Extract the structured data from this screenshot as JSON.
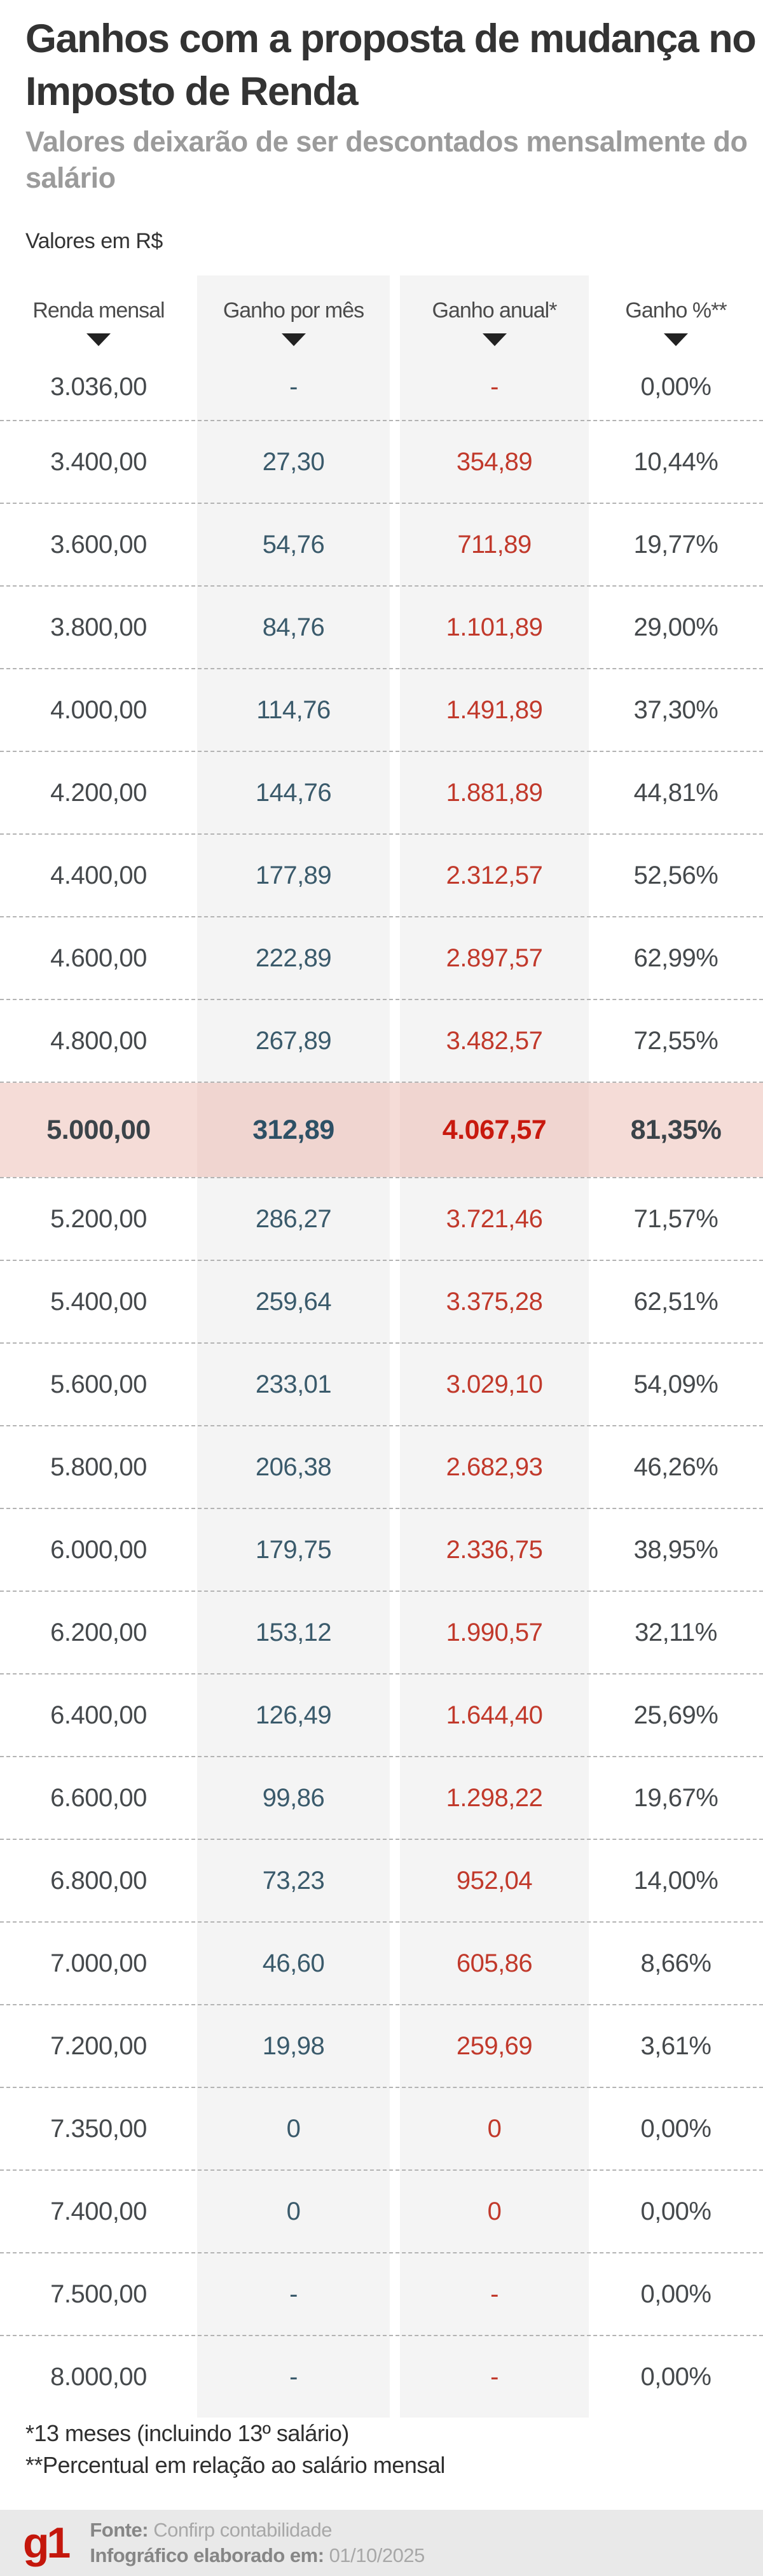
{
  "header": {
    "title": "Ganhos com a proposta de mudança no Imposto de Renda",
    "subtitle": "Valores deixarão de ser descontados mensalmente do salário",
    "unit_note": "Valores em R$"
  },
  "chart_data": {
    "type": "table",
    "title": "Ganhos com a proposta de mudança no Imposto de Renda",
    "columns": [
      "Renda mensal",
      "Ganho por mês",
      "Ganho anual*",
      "Ganho %**"
    ],
    "sort_icon": "triangle-down",
    "highlighted_row_index": 9,
    "rows": [
      {
        "renda": "3.036,00",
        "ganho_mes": "-",
        "ganho_anual": "-",
        "ganho_pct": "0,00%",
        "highlight": false
      },
      {
        "renda": "3.400,00",
        "ganho_mes": "27,30",
        "ganho_anual": "354,89",
        "ganho_pct": "10,44%",
        "highlight": false
      },
      {
        "renda": "3.600,00",
        "ganho_mes": "54,76",
        "ganho_anual": "711,89",
        "ganho_pct": "19,77%",
        "highlight": false
      },
      {
        "renda": "3.800,00",
        "ganho_mes": "84,76",
        "ganho_anual": "1.101,89",
        "ganho_pct": "29,00%",
        "highlight": false
      },
      {
        "renda": "4.000,00",
        "ganho_mes": "114,76",
        "ganho_anual": "1.491,89",
        "ganho_pct": "37,30%",
        "highlight": false
      },
      {
        "renda": "4.200,00",
        "ganho_mes": "144,76",
        "ganho_anual": "1.881,89",
        "ganho_pct": "44,81%",
        "highlight": false
      },
      {
        "renda": "4.400,00",
        "ganho_mes": "177,89",
        "ganho_anual": "2.312,57",
        "ganho_pct": "52,56%",
        "highlight": false
      },
      {
        "renda": "4.600,00",
        "ganho_mes": "222,89",
        "ganho_anual": "2.897,57",
        "ganho_pct": "62,99%",
        "highlight": false
      },
      {
        "renda": "4.800,00",
        "ganho_mes": "267,89",
        "ganho_anual": "3.482,57",
        "ganho_pct": "72,55%",
        "highlight": false
      },
      {
        "renda": "5.000,00",
        "ganho_mes": "312,89",
        "ganho_anual": "4.067,57",
        "ganho_pct": "81,35%",
        "highlight": true
      },
      {
        "renda": "5.200,00",
        "ganho_mes": "286,27",
        "ganho_anual": "3.721,46",
        "ganho_pct": "71,57%",
        "highlight": false
      },
      {
        "renda": "5.400,00",
        "ganho_mes": "259,64",
        "ganho_anual": "3.375,28",
        "ganho_pct": "62,51%",
        "highlight": false
      },
      {
        "renda": "5.600,00",
        "ganho_mes": "233,01",
        "ganho_anual": "3.029,10",
        "ganho_pct": "54,09%",
        "highlight": false
      },
      {
        "renda": "5.800,00",
        "ganho_mes": "206,38",
        "ganho_anual": "2.682,93",
        "ganho_pct": "46,26%",
        "highlight": false
      },
      {
        "renda": "6.000,00",
        "ganho_mes": "179,75",
        "ganho_anual": "2.336,75",
        "ganho_pct": "38,95%",
        "highlight": false
      },
      {
        "renda": "6.200,00",
        "ganho_mes": "153,12",
        "ganho_anual": "1.990,57",
        "ganho_pct": "32,11%",
        "highlight": false
      },
      {
        "renda": "6.400,00",
        "ganho_mes": "126,49",
        "ganho_anual": "1.644,40",
        "ganho_pct": "25,69%",
        "highlight": false
      },
      {
        "renda": "6.600,00",
        "ganho_mes": "99,86",
        "ganho_anual": "1.298,22",
        "ganho_pct": "19,67%",
        "highlight": false
      },
      {
        "renda": "6.800,00",
        "ganho_mes": "73,23",
        "ganho_anual": "952,04",
        "ganho_pct": "14,00%",
        "highlight": false
      },
      {
        "renda": "7.000,00",
        "ganho_mes": "46,60",
        "ganho_anual": "605,86",
        "ganho_pct": "8,66%",
        "highlight": false
      },
      {
        "renda": "7.200,00",
        "ganho_mes": "19,98",
        "ganho_anual": "259,69",
        "ganho_pct": "3,61%",
        "highlight": false
      },
      {
        "renda": "7.350,00",
        "ganho_mes": "0",
        "ganho_anual": "0",
        "ganho_pct": "0,00%",
        "highlight": false
      },
      {
        "renda": "7.400,00",
        "ganho_mes": "0",
        "ganho_anual": "0",
        "ganho_pct": "0,00%",
        "highlight": false
      },
      {
        "renda": "7.500,00",
        "ganho_mes": "-",
        "ganho_anual": "-",
        "ganho_pct": "0,00%",
        "highlight": false
      },
      {
        "renda": "8.000,00",
        "ganho_mes": "-",
        "ganho_anual": "-",
        "ganho_pct": "0,00%",
        "highlight": false
      }
    ]
  },
  "footnotes": [
    "*13 meses (incluindo 13º salário)",
    "**Percentual em relação ao salário mensal"
  ],
  "footer": {
    "logo_text": "g1",
    "source_label": "Fonte:",
    "source_value": "Confirp contabilidade",
    "date_label": "Infográfico elaborado em:",
    "date_value": "01/10/2025"
  },
  "colors": {
    "title_text": "#333333",
    "subtitle_text": "#9b9b9b",
    "column_band": "#f4f4f4",
    "monthly_gain_text": "#3a5a6b",
    "annual_gain_text": "#c1392b",
    "highlight_row_bg": "#f5dcd7",
    "highlight_red": "#c8190e",
    "g1_brand_red": "#c4170c",
    "footer_bg": "#e9e9e9"
  }
}
